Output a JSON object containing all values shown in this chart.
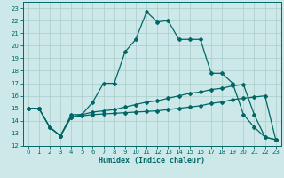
{
  "title": "",
  "xlabel": "Humidex (Indice chaleur)",
  "background_color": "#cce8e8",
  "grid_color": "#aacccc",
  "line_color": "#006666",
  "xlim": [
    -0.5,
    23.5
  ],
  "ylim": [
    12,
    23.5
  ],
  "xticks": [
    0,
    1,
    2,
    3,
    4,
    5,
    6,
    7,
    8,
    9,
    10,
    11,
    12,
    13,
    14,
    15,
    16,
    17,
    18,
    19,
    20,
    21,
    22,
    23
  ],
  "yticks": [
    12,
    13,
    14,
    15,
    16,
    17,
    18,
    19,
    20,
    21,
    22,
    23
  ],
  "line1_y": [
    15,
    15,
    13.5,
    12.8,
    14.5,
    14.5,
    15.5,
    17,
    17,
    19.5,
    20.5,
    22.7,
    21.9,
    22,
    20.5,
    20.5,
    20.5,
    17.8,
    17.8,
    17,
    14.5,
    13.5,
    12.7,
    12.5
  ],
  "line2_y": [
    15,
    15,
    13.5,
    12.8,
    14.3,
    14.5,
    14.7,
    14.8,
    14.9,
    15.1,
    15.3,
    15.5,
    15.6,
    15.8,
    16.0,
    16.2,
    16.3,
    16.5,
    16.6,
    16.8,
    16.9,
    14.5,
    12.7,
    12.5
  ],
  "line3_y": [
    15,
    15,
    13.5,
    12.8,
    14.3,
    14.4,
    14.5,
    14.55,
    14.6,
    14.65,
    14.7,
    14.75,
    14.8,
    14.9,
    15.0,
    15.1,
    15.2,
    15.4,
    15.5,
    15.7,
    15.8,
    15.9,
    16.0,
    12.5
  ]
}
